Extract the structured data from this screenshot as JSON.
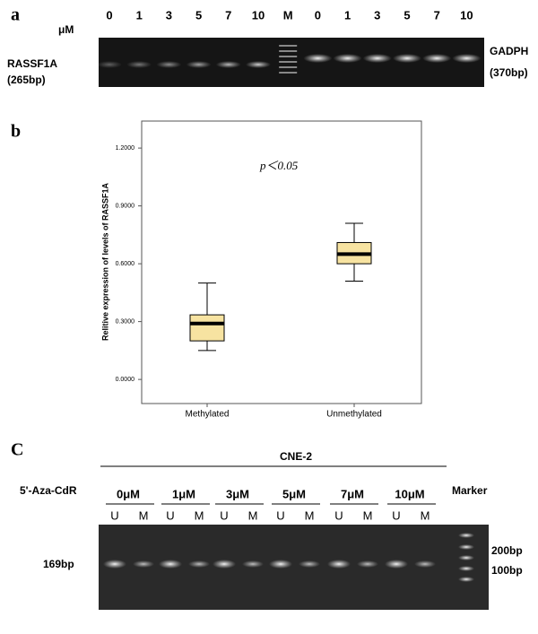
{
  "panel_a": {
    "label": "a",
    "unit": "μM",
    "lanes": [
      "0",
      "1",
      "3",
      "5",
      "7",
      "10",
      "M",
      "0",
      "1",
      "3",
      "5",
      "7",
      "10"
    ],
    "left_gene": "RASSF1A",
    "left_size": "(265bp)",
    "right_gene": "GADPH",
    "right_size": "(370bp)"
  },
  "chart_data": {
    "type": "box",
    "panel_label": "b",
    "ylabel": "Relitive expression of levels of  RASSF1A",
    "annotation": "p＜0.05",
    "categories": [
      "Methylated",
      "Unmethylated"
    ],
    "boxes": [
      {
        "whislo": 0.15,
        "q1": 0.2,
        "med": 0.29,
        "q3": 0.335,
        "whishi": 0.5
      },
      {
        "whislo": 0.51,
        "q1": 0.6,
        "med": 0.65,
        "q3": 0.71,
        "whishi": 0.81
      }
    ],
    "color": "#f7e3a1",
    "ylim": [
      -0.125,
      1.34
    ],
    "yticks": [
      {
        "value": 0,
        "label": "0.0000"
      },
      {
        "value": 0.3,
        "label": "0.3000"
      },
      {
        "value": 0.6,
        "label": "0.6000"
      },
      {
        "value": 0.9,
        "label": "0.9000"
      },
      {
        "value": 1.2,
        "label": "1.2000"
      }
    ]
  },
  "panel_c": {
    "label": "C",
    "cell_line": "CNE-2",
    "treatment": "5'-Aza-CdR",
    "marker": "Marker",
    "groups": [
      {
        "dose": "0μM",
        "u": "U",
        "m": "M"
      },
      {
        "dose": "1μM",
        "u": "U",
        "m": "M"
      },
      {
        "dose": "3μM",
        "u": "U",
        "m": "M"
      },
      {
        "dose": "5μM",
        "u": "U",
        "m": "M"
      },
      {
        "dose": "7μM",
        "u": "U",
        "m": "M"
      },
      {
        "dose": "10μM",
        "u": "U",
        "m": "M"
      }
    ],
    "band_size": "169bp",
    "marker_200": "200bp",
    "marker_100": "100bp"
  }
}
